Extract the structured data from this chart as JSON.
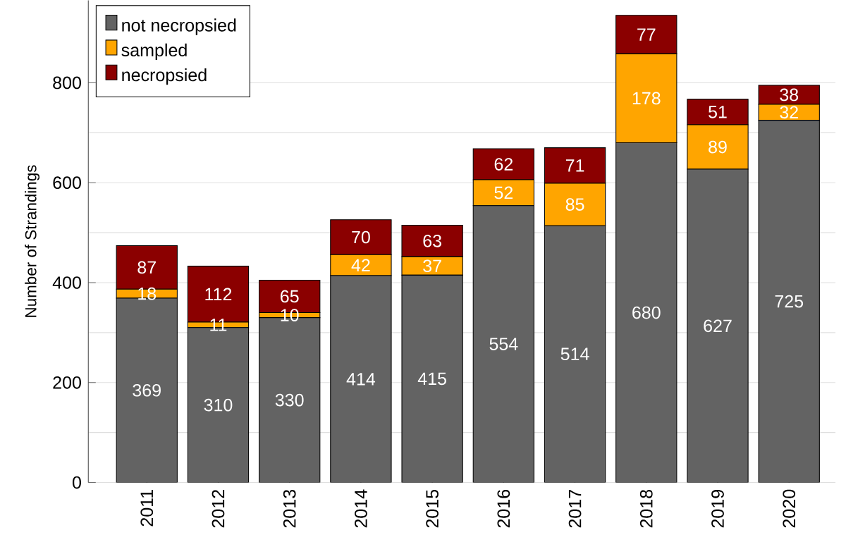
{
  "chart_data": {
    "type": "bar",
    "stacked": true,
    "ylabel": "Number of Strandings",
    "categories": [
      "2011",
      "2012",
      "2013",
      "2014",
      "2015",
      "2016",
      "2017",
      "2018",
      "2019",
      "2020"
    ],
    "series": [
      {
        "name": "not necropsied",
        "color": "#636363",
        "values": [
          369,
          310,
          330,
          414,
          415,
          554,
          514,
          680,
          627,
          725
        ]
      },
      {
        "name": "sampled",
        "color": "#ffa500",
        "values": [
          18,
          11,
          10,
          42,
          37,
          52,
          85,
          178,
          89,
          32
        ]
      },
      {
        "name": "necropsied",
        "color": "#8b0000",
        "values": [
          87,
          112,
          65,
          70,
          63,
          62,
          71,
          77,
          51,
          38
        ]
      }
    ],
    "ylim": [
      0,
      965
    ],
    "yticks": [
      0,
      200,
      400,
      600,
      800
    ],
    "grid": "y",
    "legend": "top left",
    "data_labels": true
  }
}
